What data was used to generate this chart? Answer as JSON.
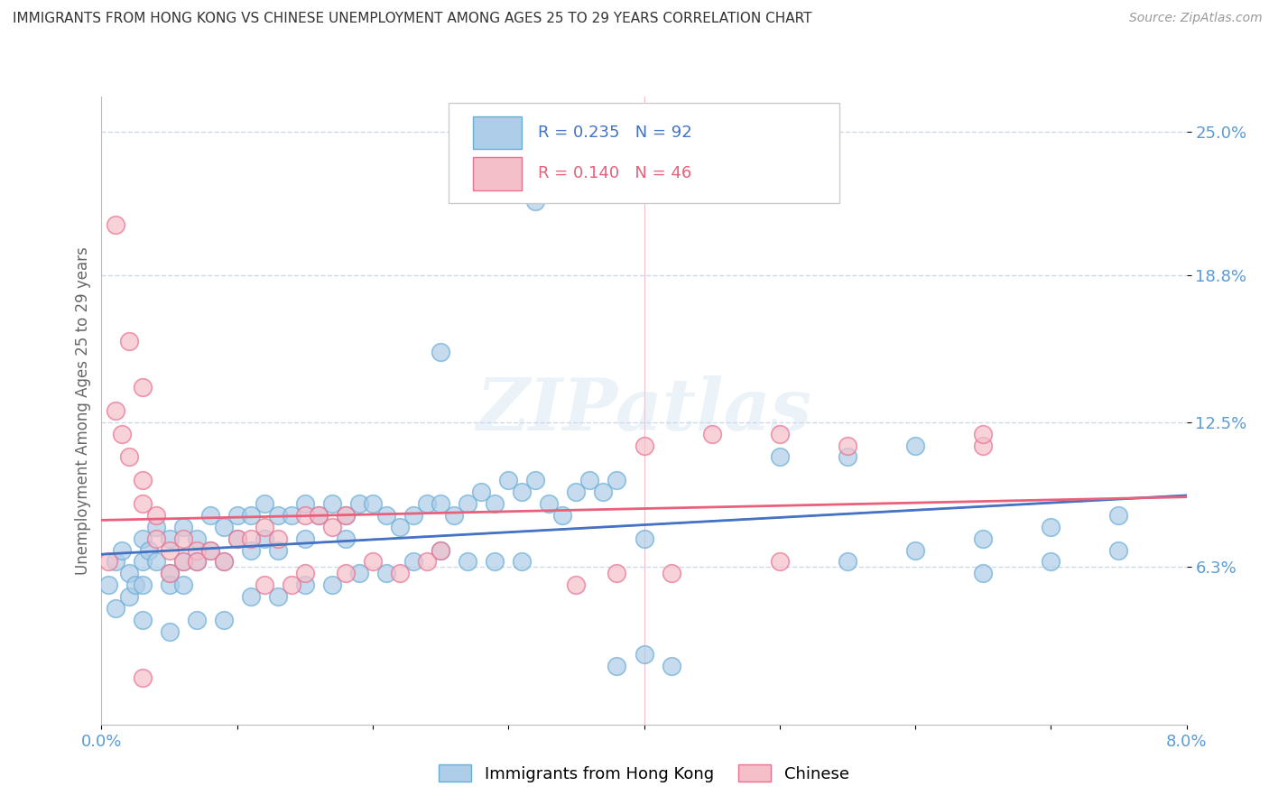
{
  "title": "IMMIGRANTS FROM HONG KONG VS CHINESE UNEMPLOYMENT AMONG AGES 25 TO 29 YEARS CORRELATION CHART",
  "source": "Source: ZipAtlas.com",
  "ylabel": "Unemployment Among Ages 25 to 29 years",
  "xlim": [
    0.0,
    0.08
  ],
  "ylim": [
    -0.005,
    0.265
  ],
  "ytick_labels": [
    "6.3%",
    "12.5%",
    "18.8%",
    "25.0%"
  ],
  "ytick_values": [
    0.063,
    0.125,
    0.188,
    0.25
  ],
  "legend_labels": [
    "Immigrants from Hong Kong",
    "Chinese"
  ],
  "R_blue": 0.235,
  "N_blue": 92,
  "R_pink": 0.14,
  "N_pink": 46,
  "blue_color": "#aecde8",
  "pink_color": "#f5bfca",
  "blue_edge": "#6aaed6",
  "pink_edge": "#e87090",
  "trend_blue": "#4472c4",
  "trend_pink": "#e8607a",
  "trend_dashed_color": "#b0b0b0",
  "watermark": "ZIPatlas",
  "background_color": "#ffffff",
  "grid_color": "#d0d8e8",
  "title_color": "#333333",
  "axis_label_color": "#666666",
  "tick_label_color": "#5b9bd5",
  "blue_scatter": [
    [
      0.0005,
      0.055
    ],
    [
      0.001,
      0.065
    ],
    [
      0.001,
      0.045
    ],
    [
      0.0015,
      0.07
    ],
    [
      0.002,
      0.06
    ],
    [
      0.002,
      0.05
    ],
    [
      0.0025,
      0.055
    ],
    [
      0.003,
      0.075
    ],
    [
      0.003,
      0.065
    ],
    [
      0.003,
      0.055
    ],
    [
      0.0035,
      0.07
    ],
    [
      0.004,
      0.08
    ],
    [
      0.004,
      0.065
    ],
    [
      0.005,
      0.075
    ],
    [
      0.005,
      0.06
    ],
    [
      0.005,
      0.055
    ],
    [
      0.006,
      0.08
    ],
    [
      0.006,
      0.065
    ],
    [
      0.006,
      0.055
    ],
    [
      0.007,
      0.075
    ],
    [
      0.007,
      0.065
    ],
    [
      0.008,
      0.085
    ],
    [
      0.008,
      0.07
    ],
    [
      0.009,
      0.08
    ],
    [
      0.009,
      0.065
    ],
    [
      0.01,
      0.085
    ],
    [
      0.01,
      0.075
    ],
    [
      0.011,
      0.085
    ],
    [
      0.011,
      0.07
    ],
    [
      0.012,
      0.09
    ],
    [
      0.012,
      0.075
    ],
    [
      0.013,
      0.085
    ],
    [
      0.013,
      0.07
    ],
    [
      0.014,
      0.085
    ],
    [
      0.015,
      0.09
    ],
    [
      0.015,
      0.075
    ],
    [
      0.016,
      0.085
    ],
    [
      0.017,
      0.09
    ],
    [
      0.018,
      0.085
    ],
    [
      0.018,
      0.075
    ],
    [
      0.019,
      0.09
    ],
    [
      0.02,
      0.09
    ],
    [
      0.021,
      0.085
    ],
    [
      0.022,
      0.08
    ],
    [
      0.023,
      0.085
    ],
    [
      0.024,
      0.09
    ],
    [
      0.025,
      0.09
    ],
    [
      0.026,
      0.085
    ],
    [
      0.027,
      0.09
    ],
    [
      0.028,
      0.095
    ],
    [
      0.029,
      0.09
    ],
    [
      0.03,
      0.1
    ],
    [
      0.031,
      0.095
    ],
    [
      0.032,
      0.1
    ],
    [
      0.033,
      0.09
    ],
    [
      0.034,
      0.085
    ],
    [
      0.035,
      0.095
    ],
    [
      0.036,
      0.1
    ],
    [
      0.037,
      0.095
    ],
    [
      0.038,
      0.1
    ],
    [
      0.003,
      0.04
    ],
    [
      0.005,
      0.035
    ],
    [
      0.007,
      0.04
    ],
    [
      0.009,
      0.04
    ],
    [
      0.011,
      0.05
    ],
    [
      0.013,
      0.05
    ],
    [
      0.015,
      0.055
    ],
    [
      0.017,
      0.055
    ],
    [
      0.019,
      0.06
    ],
    [
      0.021,
      0.06
    ],
    [
      0.023,
      0.065
    ],
    [
      0.025,
      0.07
    ],
    [
      0.027,
      0.065
    ],
    [
      0.029,
      0.065
    ],
    [
      0.031,
      0.065
    ],
    [
      0.025,
      0.155
    ],
    [
      0.032,
      0.22
    ],
    [
      0.04,
      0.075
    ],
    [
      0.05,
      0.11
    ],
    [
      0.055,
      0.11
    ],
    [
      0.06,
      0.115
    ],
    [
      0.038,
      0.02
    ],
    [
      0.04,
      0.025
    ],
    [
      0.042,
      0.02
    ],
    [
      0.055,
      0.065
    ],
    [
      0.06,
      0.07
    ],
    [
      0.065,
      0.075
    ],
    [
      0.07,
      0.08
    ],
    [
      0.075,
      0.085
    ],
    [
      0.065,
      0.06
    ],
    [
      0.07,
      0.065
    ],
    [
      0.075,
      0.07
    ]
  ],
  "pink_scatter": [
    [
      0.0005,
      0.065
    ],
    [
      0.001,
      0.13
    ],
    [
      0.001,
      0.21
    ],
    [
      0.0015,
      0.12
    ],
    [
      0.002,
      0.16
    ],
    [
      0.002,
      0.11
    ],
    [
      0.003,
      0.14
    ],
    [
      0.003,
      0.1
    ],
    [
      0.003,
      0.09
    ],
    [
      0.004,
      0.085
    ],
    [
      0.004,
      0.075
    ],
    [
      0.005,
      0.07
    ],
    [
      0.005,
      0.06
    ],
    [
      0.006,
      0.075
    ],
    [
      0.006,
      0.065
    ],
    [
      0.007,
      0.07
    ],
    [
      0.007,
      0.065
    ],
    [
      0.008,
      0.07
    ],
    [
      0.009,
      0.065
    ],
    [
      0.01,
      0.075
    ],
    [
      0.011,
      0.075
    ],
    [
      0.012,
      0.08
    ],
    [
      0.012,
      0.055
    ],
    [
      0.013,
      0.075
    ],
    [
      0.014,
      0.055
    ],
    [
      0.015,
      0.085
    ],
    [
      0.015,
      0.06
    ],
    [
      0.016,
      0.085
    ],
    [
      0.017,
      0.08
    ],
    [
      0.018,
      0.085
    ],
    [
      0.018,
      0.06
    ],
    [
      0.02,
      0.065
    ],
    [
      0.022,
      0.06
    ],
    [
      0.024,
      0.065
    ],
    [
      0.025,
      0.07
    ],
    [
      0.04,
      0.115
    ],
    [
      0.045,
      0.12
    ],
    [
      0.05,
      0.12
    ],
    [
      0.055,
      0.115
    ],
    [
      0.065,
      0.115
    ],
    [
      0.065,
      0.12
    ],
    [
      0.003,
      0.015
    ],
    [
      0.035,
      0.055
    ],
    [
      0.038,
      0.06
    ],
    [
      0.042,
      0.06
    ],
    [
      0.05,
      0.065
    ]
  ]
}
